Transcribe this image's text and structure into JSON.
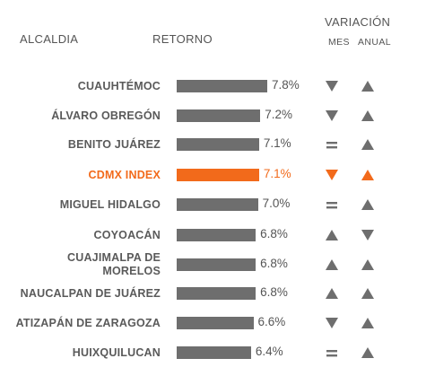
{
  "chart_data": {
    "type": "table",
    "columns": {
      "name": "ALCALDIA",
      "return": "RETORNO",
      "variation": "VARIACIÓN",
      "month": "MES",
      "year": "ANUAL"
    },
    "rows": [
      {
        "name": "CUAUHTÉMOC",
        "name_lines": [
          "CUAUHTÉMOC"
        ],
        "value": 7.8,
        "label": "7.8%",
        "mes": "down",
        "anual": "up"
      },
      {
        "name": "ÁLVARO OBREGÓN",
        "name_lines": [
          "ÁLVARO OBREGÓN"
        ],
        "value": 7.2,
        "label": "7.2%",
        "mes": "down",
        "anual": "up"
      },
      {
        "name": "BENITO JUÁREZ",
        "name_lines": [
          "BENITO JUÁREZ"
        ],
        "value": 7.1,
        "label": "7.1%",
        "mes": "equal",
        "anual": "up"
      },
      {
        "name": "CDMX INDEX",
        "name_lines": [
          "CDMX INDEX"
        ],
        "value": 7.1,
        "label": "7.1%",
        "mes": "down",
        "anual": "up",
        "highlight": true
      },
      {
        "name": "MIGUEL HIDALGO",
        "name_lines": [
          "MIGUEL HIDALGO"
        ],
        "value": 7.0,
        "label": "7.0%",
        "mes": "equal",
        "anual": "up"
      },
      {
        "name": "COYOACÁN",
        "name_lines": [
          "COYOACÁN"
        ],
        "value": 6.8,
        "label": "6.8%",
        "mes": "up",
        "anual": "down"
      },
      {
        "name": "CUAJIMALPA DE MORELOS",
        "name_lines": [
          "CUAJIMALPA DE",
          "MORELOS"
        ],
        "value": 6.8,
        "label": "6.8%",
        "mes": "up",
        "anual": "up"
      },
      {
        "name": "NAUCALPAN DE JUÁREZ",
        "name_lines": [
          "NAUCALPAN DE JUÁREZ"
        ],
        "value": 6.8,
        "label": "6.8%",
        "mes": "up",
        "anual": "up"
      },
      {
        "name": "ATIZAPÁN DE ZARAGOZA",
        "name_lines": [
          "ATIZAPÁN DE ZARAGOZA"
        ],
        "value": 6.6,
        "label": "6.6%",
        "mes": "down",
        "anual": "up"
      },
      {
        "name": "HUIXQUILUCAN",
        "name_lines": [
          "HUIXQUILUCAN"
        ],
        "value": 6.4,
        "label": "6.4%",
        "mes": "equal",
        "anual": "up"
      }
    ]
  },
  "colors": {
    "bar": "#6e6e6e",
    "highlight": "#f26a1b",
    "indicator": "#6e6e6e"
  }
}
